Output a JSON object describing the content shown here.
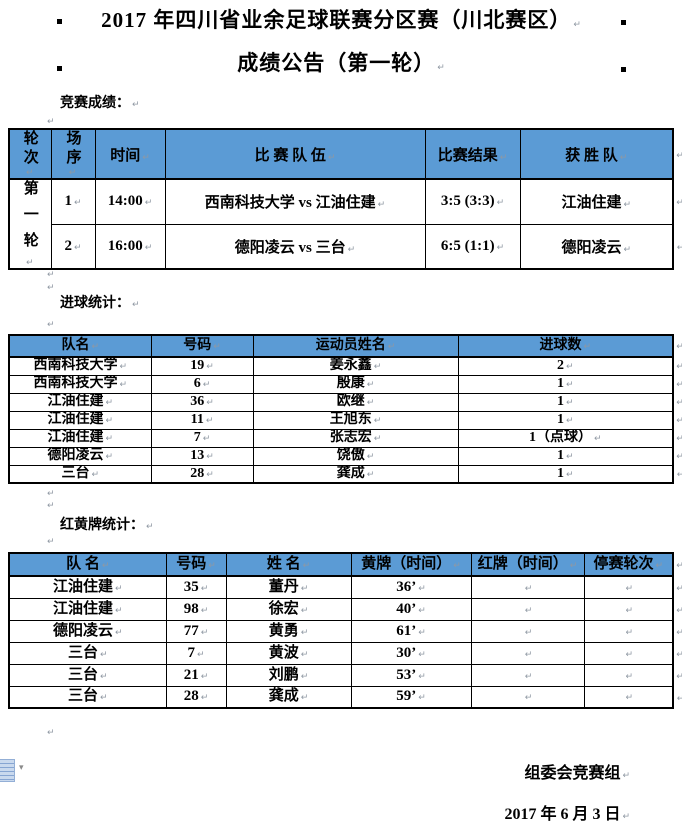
{
  "glyphs": {
    "pilcrow": "↵",
    "paste_arrow": "▾"
  },
  "colors": {
    "header_blue": "#5B9BD5",
    "border": "#000000",
    "mark_gray": "#8f98a3",
    "page_bg": "#ffffff",
    "paste_icon_blue": "#c9d9ee"
  },
  "title": {
    "line1": "2017 年四川省业余足球联赛分区赛（川北赛区）",
    "line2": "成绩公告（第一轮）"
  },
  "sections": {
    "results_label": "竞赛成绩：",
    "goals_label": "进球统计：",
    "cards_label": "红黄牌统计："
  },
  "results_table": {
    "headers": [
      "轮次",
      "场序",
      "时间",
      "比 赛 队 伍",
      "比赛结果",
      "获 胜 队"
    ],
    "round_label": "第一轮",
    "rows": [
      {
        "match_no": "1",
        "time": "14:00",
        "teams": "西南科技大学 vs 江油住建",
        "score": "3:5 (3:3)",
        "winner": "江油住建"
      },
      {
        "match_no": "2",
        "time": "16:00",
        "teams": "德阳凌云 vs 三台",
        "score": "6:5 (1:1)",
        "winner": "德阳凌云"
      }
    ]
  },
  "goals_table": {
    "headers": [
      "队名",
      "号码",
      "运动员姓名",
      "进球数"
    ],
    "rows": [
      [
        "西南科技大学",
        "19",
        "姜永鑫",
        "2"
      ],
      [
        "西南科技大学",
        "6",
        "殷康",
        "1"
      ],
      [
        "江油住建",
        "36",
        "欧继",
        "1"
      ],
      [
        "江油住建",
        "11",
        "王旭东",
        "1"
      ],
      [
        "江油住建",
        "7",
        "张志宏",
        "1（点球）"
      ],
      [
        "德阳凌云",
        "13",
        "饶傲",
        "1"
      ],
      [
        "三台",
        "28",
        "龚成",
        "1"
      ]
    ]
  },
  "cards_table": {
    "headers": [
      "队 名",
      "号码",
      "姓 名",
      "黄牌（时间）",
      "红牌（时间）",
      "停赛轮次"
    ],
    "rows": [
      [
        "江油住建",
        "35",
        "董丹",
        "36’",
        "",
        ""
      ],
      [
        "江油住建",
        "98",
        "徐宏",
        "40’",
        "",
        ""
      ],
      [
        "德阳凌云",
        "77",
        "黄勇",
        "61’",
        "",
        ""
      ],
      [
        "三台",
        "7",
        "黄波",
        "30’",
        "",
        ""
      ],
      [
        "三台",
        "21",
        "刘鹏",
        "53’",
        "",
        ""
      ],
      [
        "三台",
        "28",
        "龚成",
        "59’",
        "",
        ""
      ]
    ]
  },
  "footer": {
    "signature": "组委会竞赛组",
    "date": "2017 年 6 月 3 日"
  }
}
